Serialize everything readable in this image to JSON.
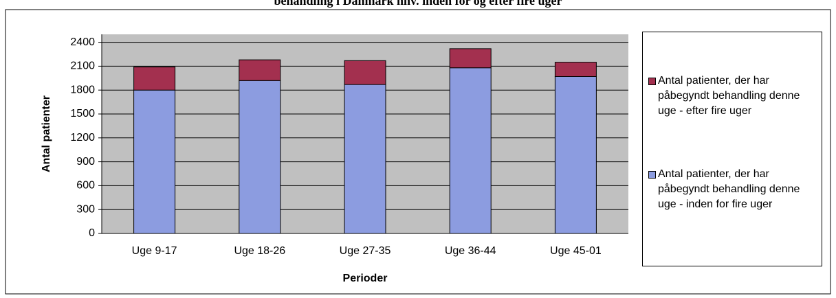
{
  "chart_data": {
    "type": "stacked-bar",
    "title": "behandling i Danmark hhv. inden for og efter fire uger",
    "x_label": "Perioder",
    "y_label": "Antal patienter",
    "categories": [
      "Uge 9-17",
      "Uge 18-26",
      "Uge 27-35",
      "Uge 36-44",
      "Uge 45-01"
    ],
    "series": [
      {
        "name": "Antal patienter, der har påbegyndt behandling denne uge - inden for fire uger",
        "color": "#8c9ce0",
        "values": [
          1800,
          1920,
          1870,
          2080,
          1970
        ]
      },
      {
        "name": "Antal patienter, der har påbegyndt behandling denne uge - efter fire uger",
        "color": "#a3304f",
        "values": [
          290,
          260,
          300,
          240,
          180
        ]
      }
    ],
    "ylim": [
      0,
      2500
    ],
    "yticks": [
      0,
      300,
      600,
      900,
      1200,
      1500,
      1800,
      2100,
      2400
    ],
    "grid": true
  }
}
